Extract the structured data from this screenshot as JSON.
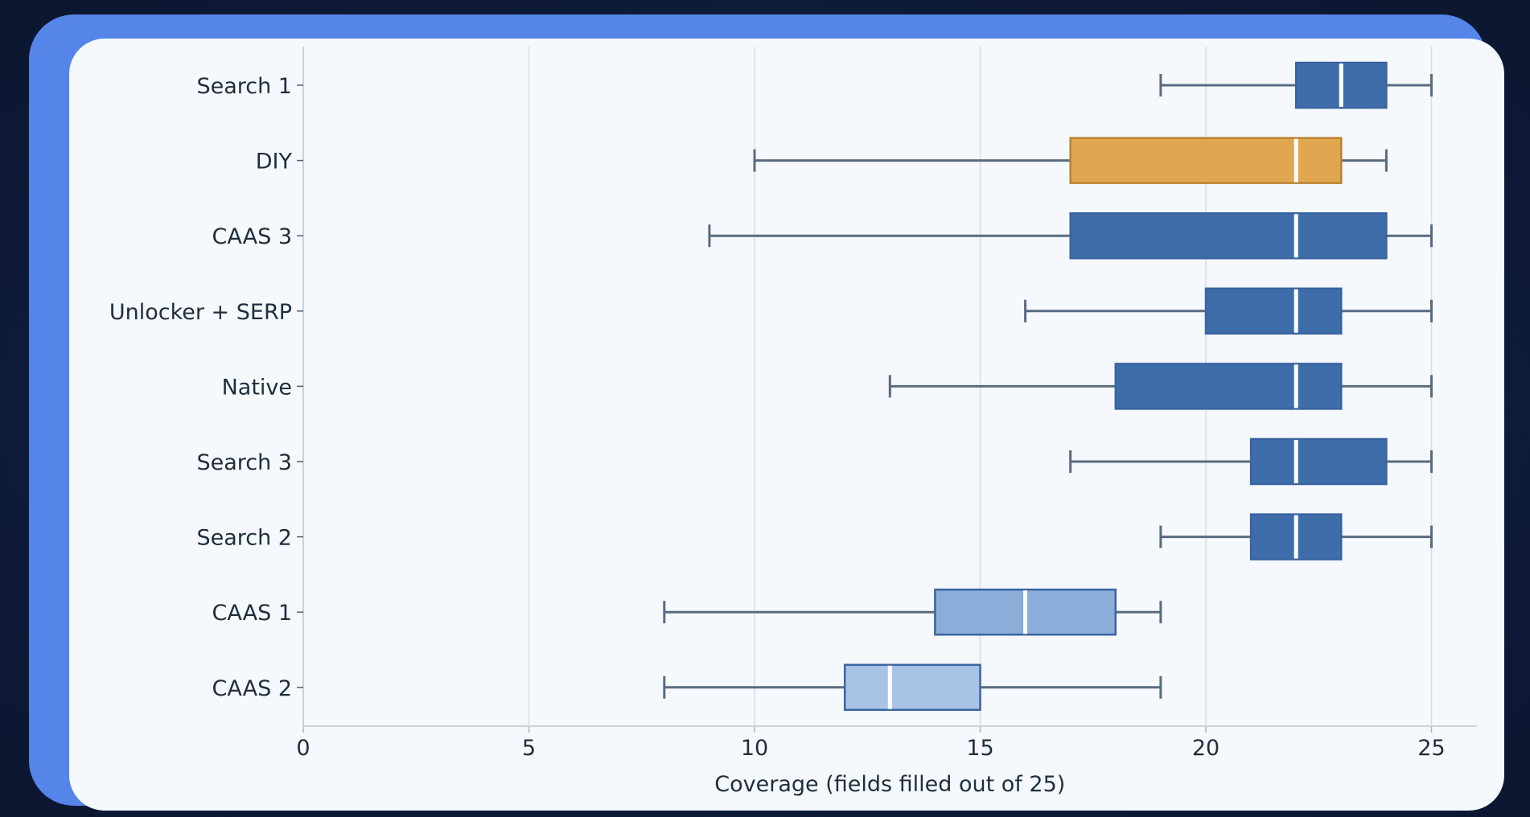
{
  "chart_data": {
    "type": "box",
    "xlabel": "Coverage (fields filled out of 25)",
    "ylabel": "",
    "title": "",
    "xlim": [
      0,
      26
    ],
    "xticks": [
      0,
      5,
      10,
      15,
      20,
      25
    ],
    "grid": "vertical",
    "series": [
      {
        "label": "Search 1",
        "whisker_low": 19,
        "q1": 22,
        "median": 23,
        "q3": 24,
        "whisker_high": 25,
        "color": "#3d6ea9"
      },
      {
        "label": "DIY",
        "whisker_low": 10,
        "q1": 17,
        "median": 22,
        "q3": 23,
        "whisker_high": 24,
        "color": "#e0a750"
      },
      {
        "label": "CAAS 3",
        "whisker_low": 9,
        "q1": 17,
        "median": 22,
        "q3": 24,
        "whisker_high": 25,
        "color": "#3d6ea9"
      },
      {
        "label": "Unlocker + SERP",
        "whisker_low": 16,
        "q1": 20,
        "median": 22,
        "q3": 23,
        "whisker_high": 25,
        "color": "#3d6ea9"
      },
      {
        "label": "Native",
        "whisker_low": 13,
        "q1": 18,
        "median": 22,
        "q3": 23,
        "whisker_high": 25,
        "color": "#3d6ea9"
      },
      {
        "label": "Search 3",
        "whisker_low": 17,
        "q1": 21,
        "median": 22,
        "q3": 24,
        "whisker_high": 25,
        "color": "#3d6ea9"
      },
      {
        "label": "Search 2",
        "whisker_low": 19,
        "q1": 21,
        "median": 22,
        "q3": 23,
        "whisker_high": 25,
        "color": "#3d6ea9"
      },
      {
        "label": "CAAS 1",
        "whisker_low": 8,
        "q1": 14,
        "median": 16,
        "q3": 18,
        "whisker_high": 19,
        "color": "#8aadda"
      },
      {
        "label": "CAAS 2",
        "whisker_low": 8,
        "q1": 12,
        "median": 13,
        "q3": 15,
        "whisker_high": 19,
        "color": "#a9c3e6"
      }
    ]
  }
}
